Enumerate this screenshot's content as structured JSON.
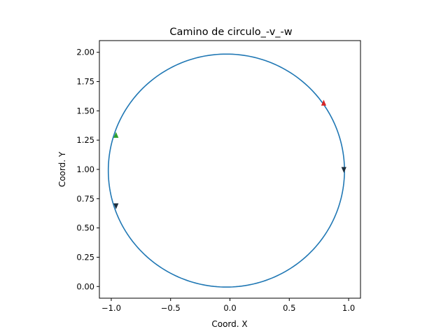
{
  "chart_data": {
    "type": "line",
    "title": "Camino de circulo_-v_-w",
    "xlabel": "Coord. X",
    "ylabel": "Coord. Y",
    "xlim": [
      -1.1,
      1.1
    ],
    "ylim": [
      -0.1,
      2.1
    ],
    "xticks": [
      -1.0,
      -0.5,
      0.0,
      0.5,
      1.0
    ],
    "xtick_labels": [
      "−1.0",
      "−0.5",
      "0.0",
      "0.5",
      "1.0"
    ],
    "yticks": [
      0.0,
      0.25,
      0.5,
      0.75,
      1.0,
      1.25,
      1.5,
      1.75,
      2.0
    ],
    "ytick_labels": [
      "0.00",
      "0.25",
      "0.50",
      "0.75",
      "1.00",
      "1.25",
      "1.50",
      "1.75",
      "2.00"
    ],
    "grid": false,
    "series": [
      {
        "shape": "circle",
        "center": [
          -0.03,
          0.99
        ],
        "radius": 0.995,
        "color": "#1f77b4"
      }
    ],
    "markers": [
      {
        "x": 0.79,
        "y": 1.565,
        "direction": "up",
        "color": "#d62728"
      },
      {
        "x": -0.96,
        "y": 1.29,
        "direction": "up",
        "color": "#2ca02c"
      },
      {
        "x": 0.96,
        "y": 1.0,
        "direction": "down",
        "color": "#1c2e3d"
      },
      {
        "x": -0.96,
        "y": 0.69,
        "direction": "down",
        "color": "#1c2e3d"
      }
    ]
  }
}
